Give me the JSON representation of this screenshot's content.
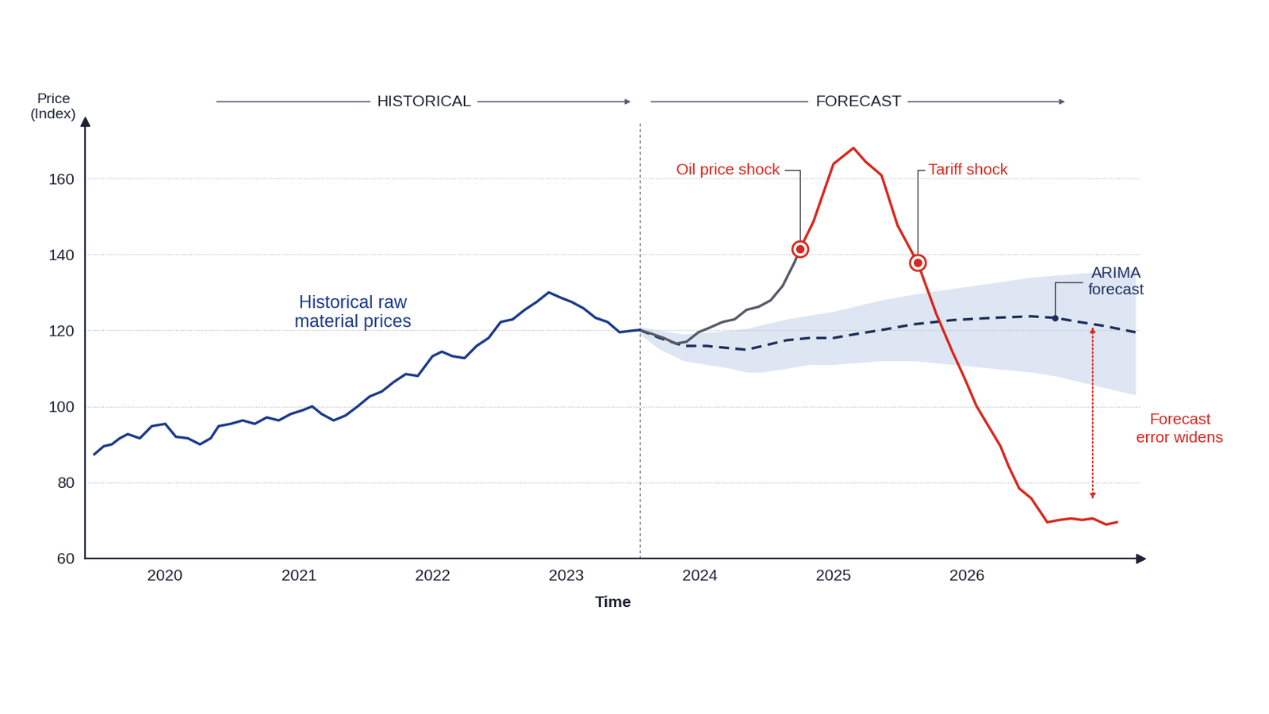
{
  "chart_data": {
    "type": "line",
    "x_label": "Time",
    "y_label": "Price\n(Index)",
    "xlim": [
      2019.4,
      2027.3
    ],
    "xticks": [
      2020,
      2021,
      2022,
      2023,
      2024,
      2025,
      2026
    ],
    "ylim": [
      60,
      175
    ],
    "yticks": [
      60,
      80,
      100,
      120,
      140,
      160
    ],
    "grid": "y",
    "divider": 2023.55,
    "sections": [
      {
        "label": "HISTORICAL"
      },
      {
        "label": "FORECAST"
      }
    ],
    "series": [
      {
        "type": "band",
        "color": "#d9e2f3",
        "x": [
          2023.55,
          2023.7,
          2023.88,
          2024.05,
          2024.23,
          2024.35,
          2024.47,
          2024.65,
          2024.82,
          2025.0,
          2025.18,
          2025.36,
          2025.6,
          2025.89,
          2026.19,
          2026.48,
          2026.66,
          2026.84,
          2027.02,
          2027.26
        ],
        "lower": [
          119,
          115,
          112,
          111,
          110,
          109,
          109,
          110,
          111,
          111,
          111.5,
          112,
          112,
          111,
          110,
          109,
          108,
          106.5,
          105,
          103
        ],
        "upper": [
          121,
          120,
          119,
          119.5,
          120,
          120.5,
          121.5,
          123,
          124,
          125,
          126.5,
          128,
          129.5,
          131,
          132.5,
          134,
          134.5,
          135,
          135.5,
          136
        ]
      },
      {
        "color": "#1c2f5a",
        "line_style": "dashed",
        "x": [
          2023.55,
          2023.7,
          2023.88,
          2024.05,
          2024.23,
          2024.35,
          2024.47,
          2024.65,
          2024.82,
          2025.0,
          2025.18,
          2025.36,
          2025.6,
          2025.89,
          2026.19,
          2026.48,
          2026.66,
          2026.84,
          2027.02,
          2027.26
        ],
        "values": [
          120.1,
          118,
          115.9,
          115.9,
          115.3,
          114.9,
          115.9,
          117.4,
          118,
          118,
          119.1,
          120.1,
          121.6,
          122.7,
          123.3,
          123.7,
          123.3,
          122.2,
          121.2,
          119.5
        ]
      },
      {
        "color": "#555b66",
        "line_style": "solid",
        "x": [
          2023.55,
          2023.64,
          2023.73,
          2023.82,
          2023.9,
          2023.99,
          2024.08,
          2024.17,
          2024.26,
          2024.35,
          2024.44,
          2024.53,
          2024.62,
          2024.71,
          2024.75
        ],
        "values": [
          120.1,
          119.1,
          118,
          116.5,
          117,
          119.5,
          120.8,
          122.2,
          122.9,
          125.4,
          126.2,
          127.9,
          131.7,
          138,
          141.4
        ]
      },
      {
        "color": "#d9261c",
        "line_style": "solid",
        "x": [
          2024.75,
          2024.85,
          2025.0,
          2025.15,
          2025.24,
          2025.36,
          2025.48,
          2025.63,
          2025.77,
          2025.89,
          2025.98,
          2026.07,
          2026.16,
          2026.25,
          2026.31,
          2026.39,
          2026.48,
          2026.6,
          2026.69,
          2026.78,
          2026.86,
          2026.94,
          2027.04,
          2027.12
        ],
        "values": [
          141.4,
          148.6,
          163.8,
          168,
          164.4,
          160.8,
          147.6,
          137.8,
          124.3,
          114.4,
          107.5,
          100.1,
          94.8,
          89.5,
          84.3,
          78.4,
          75.8,
          69.5,
          70.1,
          70.5,
          70.1,
          70.5,
          68.9,
          69.5
        ]
      },
      {
        "color": "#1a3a8a",
        "line_style": "solid",
        "x": [
          2019.47,
          2019.54,
          2019.6,
          2019.66,
          2019.72,
          2019.81,
          2019.9,
          2020.0,
          2020.08,
          2020.17,
          2020.26,
          2020.34,
          2020.4,
          2020.49,
          2020.58,
          2020.67,
          2020.76,
          2020.85,
          2020.94,
          2021.03,
          2021.1,
          2021.17,
          2021.26,
          2021.35,
          2021.44,
          2021.53,
          2021.62,
          2021.71,
          2021.8,
          2021.89,
          2022.0,
          2022.07,
          2022.15,
          2022.24,
          2022.33,
          2022.42,
          2022.51,
          2022.6,
          2022.69,
          2022.78,
          2022.87,
          2022.96,
          2023.04,
          2023.13,
          2023.22,
          2023.31,
          2023.4,
          2023.49,
          2023.55
        ],
        "values": [
          87.4,
          89.5,
          90,
          91.6,
          92.7,
          91.6,
          94.8,
          95.4,
          92,
          91.6,
          90,
          91.6,
          94.8,
          95.4,
          96.3,
          95.4,
          97.1,
          96.3,
          98,
          99,
          100,
          98,
          96.3,
          97.6,
          100,
          102.6,
          103.9,
          106.4,
          108.5,
          108,
          113.2,
          114.4,
          113.2,
          112.7,
          115.9,
          118,
          122.2,
          122.9,
          125.4,
          127.5,
          130,
          128.6,
          127.5,
          125.8,
          123.3,
          122.2,
          119.5,
          119.9,
          120.1
        ]
      }
    ],
    "annotations": [
      {
        "text": "Historical raw\nmaterial prices",
        "color": "#1a3a8a"
      },
      {
        "text": "Oil price shock",
        "x": 2024.75,
        "y": 141.4,
        "color": "#d9261c"
      },
      {
        "text": "Tariff shock",
        "x": 2025.63,
        "y": 137.8,
        "color": "#d9261c"
      },
      {
        "text": "ARIMA\nforecast",
        "x": 2026.66,
        "y": 123.3,
        "color": "#1c2f5a"
      },
      {
        "text": "Forecast\nerror widens",
        "x": 2026.94,
        "y_range": [
          121.5,
          75
        ],
        "color": "#d9261c"
      }
    ]
  }
}
